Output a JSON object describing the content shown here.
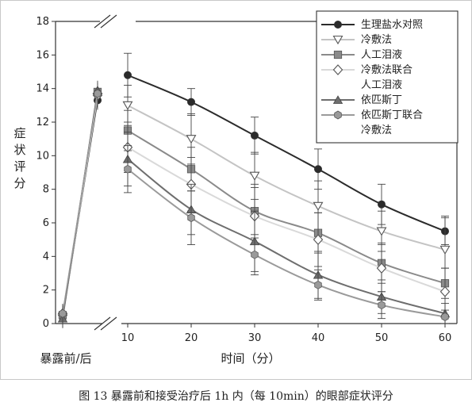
{
  "chart_data": {
    "type": "line",
    "ylabel": "症状评分",
    "xlabel": "时间（分）",
    "left_panel_label": "暴露前/后",
    "caption": "图 13  暴露前和接受治疗后 1h 内（每 10min）的眼部症状评分",
    "y_ticks": [
      0,
      2,
      4,
      6,
      8,
      10,
      12,
      14,
      16,
      18
    ],
    "x_ticks": [
      10,
      20,
      30,
      40,
      50,
      60
    ],
    "ylim": [
      0,
      18
    ],
    "xlim": [
      10,
      60
    ],
    "legend_position": "top-right",
    "series": [
      {
        "name": "生理盐水对照",
        "legend_lines": [
          "生理盐水对照"
        ],
        "color": "#2b2b2b",
        "marker": "circle",
        "pre": [
          0.4,
          13.3
        ],
        "x": [
          10,
          20,
          30,
          40,
          50,
          60
        ],
        "values": [
          14.8,
          13.2,
          11.2,
          9.2,
          7.1,
          5.5
        ],
        "err": [
          1.3,
          0.8,
          1.1,
          1.2,
          1.2,
          0.8
        ]
      },
      {
        "name": "冷敷法",
        "legend_lines": [
          "冷敷法"
        ],
        "color": "#c4c4c4",
        "marker": "triangle-down",
        "pre": [
          0.3,
          13.5
        ],
        "x": [
          10,
          20,
          30,
          40,
          50,
          60
        ],
        "values": [
          13.0,
          11.0,
          8.8,
          7.0,
          5.5,
          4.4
        ],
        "err": [
          1.2,
          1.5,
          1.4,
          1.5,
          1.2,
          2.0
        ]
      },
      {
        "name": "人工泪液",
        "legend_lines": [
          "人工泪液"
        ],
        "color": "#8a8a8a",
        "marker": "square",
        "pre": [
          0.5,
          13.8
        ],
        "x": [
          10,
          20,
          30,
          40,
          50,
          60
        ],
        "values": [
          11.5,
          9.2,
          6.7,
          5.4,
          3.6,
          2.4
        ],
        "err": [
          1.2,
          1.3,
          1.6,
          1.2,
          1.2,
          0.9
        ]
      },
      {
        "name": "冷敷法联合人工泪液",
        "legend_lines": [
          "冷敷法联合",
          "人工泪液"
        ],
        "color": "#d9d9d9",
        "marker": "diamond",
        "pre": [
          0.6,
          13.6
        ],
        "x": [
          10,
          20,
          30,
          40,
          50,
          60
        ],
        "values": [
          10.5,
          8.3,
          6.4,
          5.0,
          3.3,
          1.9
        ],
        "err": [
          1.5,
          1.6,
          1.7,
          1.6,
          1.4,
          1.4
        ]
      },
      {
        "name": "依匹斯丁",
        "legend_lines": [
          "依匹斯丁"
        ],
        "color": "#6e6e6e",
        "marker": "triangle-up",
        "pre": [
          0.3,
          13.9
        ],
        "x": [
          10,
          20,
          30,
          40,
          50,
          60
        ],
        "values": [
          9.8,
          6.8,
          4.9,
          2.9,
          1.6,
          0.6
        ],
        "err": [
          1.6,
          1.5,
          1.8,
          1.4,
          1.0,
          0.6
        ]
      },
      {
        "name": "依匹斯丁联合冷敷法",
        "legend_lines": [
          "依匹斯丁联合",
          "冷敷法"
        ],
        "color": "#9a9a9a",
        "marker": "hexagon",
        "pre": [
          0.6,
          13.7
        ],
        "x": [
          10,
          20,
          30,
          40,
          50,
          60
        ],
        "values": [
          9.2,
          6.3,
          4.1,
          2.3,
          1.1,
          0.4
        ],
        "err": [
          1.4,
          1.6,
          1.2,
          0.9,
          0.8,
          0.4
        ]
      }
    ]
  }
}
